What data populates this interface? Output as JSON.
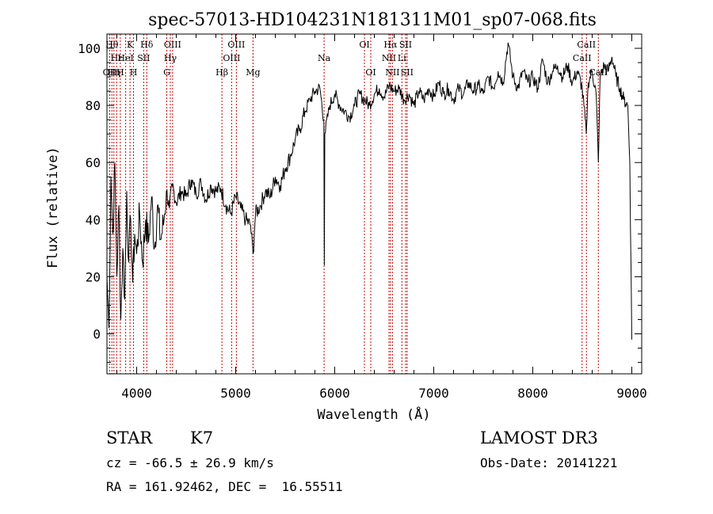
{
  "chart_data": {
    "type": "line",
    "title": "spec-57013-HD104231N181311M01_sp07-068.fits",
    "xlabel": "Wavelength (Å)",
    "ylabel": "Flux (relative)",
    "xlim": [
      3700,
      9100
    ],
    "ylim": [
      -14,
      105
    ],
    "x_ticks": [
      4000,
      5000,
      6000,
      7000,
      8000,
      9000
    ],
    "y_ticks": [
      0,
      20,
      40,
      60,
      80,
      100
    ],
    "line_color": "#000000",
    "marker_color": "#cc0000",
    "series": [
      {
        "x": [
          3700,
          3720,
          3740,
          3760,
          3780,
          3800,
          3820,
          3840,
          3860,
          3880,
          3900,
          3920,
          3940,
          3960,
          3980,
          4000,
          4030,
          4060,
          4090,
          4120,
          4150,
          4180,
          4210,
          4240,
          4270,
          4300,
          4330,
          4360,
          4400,
          4450,
          4500,
          4550,
          4600,
          4650,
          4700,
          4750,
          4800,
          4850,
          4900,
          4950,
          5000,
          5050,
          5100,
          5150,
          5175,
          5200,
          5250,
          5300,
          5350,
          5400,
          5450,
          5500,
          5550,
          5600,
          5650,
          5700,
          5750,
          5800,
          5850,
          5890,
          5895,
          5900,
          5950,
          6000,
          6050,
          6100,
          6150,
          6200,
          6250,
          6300,
          6350,
          6400,
          6450,
          6500,
          6550,
          6600,
          6650,
          6700,
          6750,
          6800,
          6850,
          6900,
          6950,
          7000,
          7050,
          7100,
          7150,
          7200,
          7250,
          7300,
          7350,
          7400,
          7450,
          7500,
          7550,
          7600,
          7650,
          7700,
          7750,
          7800,
          7850,
          7900,
          7950,
          8000,
          8050,
          8100,
          8150,
          8200,
          8250,
          8300,
          8350,
          8400,
          8450,
          8500,
          8540,
          8560,
          8600,
          8640,
          8662,
          8680,
          8720,
          8760,
          8800,
          8840,
          8880,
          8920,
          8960,
          8980,
          9000
        ],
        "y": [
          20,
          2,
          55,
          35,
          60,
          20,
          45,
          5,
          30,
          12,
          50,
          25,
          40,
          18,
          35,
          28,
          42,
          25,
          40,
          32,
          48,
          30,
          45,
          33,
          38,
          50,
          44,
          52,
          46,
          50,
          48,
          54,
          49,
          53,
          47,
          52,
          50,
          51,
          45,
          42,
          48,
          44,
          40,
          38,
          28,
          42,
          45,
          50,
          48,
          55,
          52,
          58,
          62,
          68,
          72,
          78,
          82,
          85,
          86,
          75,
          24,
          70,
          80,
          84,
          80,
          78,
          76,
          80,
          84,
          82,
          80,
          84,
          86,
          83,
          87,
          85,
          86,
          82,
          84,
          80,
          85,
          82,
          86,
          83,
          88,
          84,
          86,
          82,
          86,
          84,
          88,
          85,
          87,
          84,
          90,
          86,
          92,
          88,
          102,
          90,
          86,
          92,
          88,
          90,
          86,
          96,
          88,
          92,
          94,
          90,
          94,
          88,
          92,
          86,
          70,
          88,
          92,
          84,
          60,
          90,
          94,
          92,
          97,
          90,
          86,
          82,
          80,
          60,
          -2
        ]
      }
    ],
    "line_markers": [
      {
        "x": 3728,
        "label": "OII",
        "row": 2
      },
      {
        "x": 3750,
        "label": "Hθ",
        "row": 0
      },
      {
        "x": 3770,
        "label": "Hη",
        "row": 2
      },
      {
        "x": 3798,
        "label": "Hε",
        "row": 1
      },
      {
        "x": 3835,
        "label": "H",
        "row": 2
      },
      {
        "x": 3889,
        "label": "HeI",
        "row": 1
      },
      {
        "x": 3933,
        "label": "K",
        "row": 0
      },
      {
        "x": 3968,
        "label": "H",
        "row": 2
      },
      {
        "x": 4071,
        "label": "SII",
        "row": 1
      },
      {
        "x": 4102,
        "label": "Hδ",
        "row": 0
      },
      {
        "x": 4304,
        "label": "G",
        "row": 2
      },
      {
        "x": 4340,
        "label": "Hγ",
        "row": 1
      },
      {
        "x": 4363,
        "label": "OIII",
        "row": 0
      },
      {
        "x": 4861,
        "label": "Hβ",
        "row": 2
      },
      {
        "x": 4959,
        "label": "OIII",
        "row": 1
      },
      {
        "x": 5007,
        "label": "OIII",
        "row": 0
      },
      {
        "x": 5175,
        "label": "Mg",
        "row": 2
      },
      {
        "x": 5893,
        "label": "Na",
        "row": 1
      },
      {
        "x": 6300,
        "label": "OI",
        "row": 0
      },
      {
        "x": 6364,
        "label": "OI",
        "row": 2
      },
      {
        "x": 6548,
        "label": "NII",
        "row": 1
      },
      {
        "x": 6563,
        "label": "Hα",
        "row": 0
      },
      {
        "x": 6583,
        "label": "NII",
        "row": 2
      },
      {
        "x": 6678,
        "label": "Li",
        "row": 1
      },
      {
        "x": 6716,
        "label": "SII",
        "row": 0
      },
      {
        "x": 6731,
        "label": "SII",
        "row": 2
      },
      {
        "x": 8498,
        "label": "CaII",
        "row": 1
      },
      {
        "x": 8542,
        "label": "CaII",
        "row": 0
      },
      {
        "x": 8662,
        "label": "CaII",
        "row": 2
      }
    ]
  },
  "info": {
    "object_class": "STAR",
    "subclass": "K7",
    "survey": "LAMOST DR3",
    "redshift": "cz = -66.5 ± 26.9 km/s",
    "obs_date": "Obs-Date: 20141221",
    "coords": "RA = 161.92462, DEC =  16.55511"
  }
}
